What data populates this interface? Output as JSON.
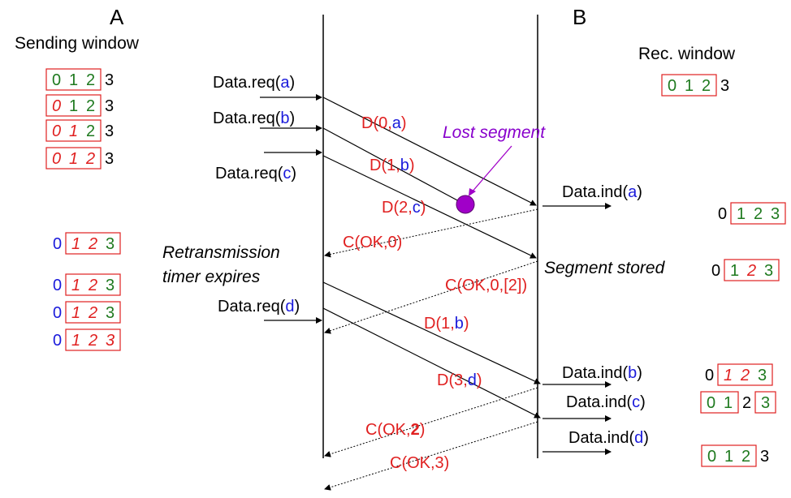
{
  "labels": {
    "a_title": "A",
    "b_title": "B",
    "sending_window": "Sending window",
    "rec_window": "Rec. window",
    "lost_segment": "Lost segment",
    "retrans_line1": "Retransmission",
    "retrans_line2": "timer expires",
    "segment_stored": "Segment stored"
  },
  "colors": {
    "red": "#e02020",
    "blue": "#1a1adb",
    "green": "#1f7a1f",
    "purple": "#8800cc",
    "black": "#000000"
  },
  "texts": [
    {
      "key": "data_req_a",
      "parts": [
        [
          "Data.req(",
          "black"
        ],
        [
          "a",
          "blue"
        ],
        [
          ")",
          "black"
        ]
      ]
    },
    {
      "key": "data_req_b",
      "parts": [
        [
          "Data.req(",
          "black"
        ],
        [
          "b",
          "blue"
        ],
        [
          ")",
          "black"
        ]
      ]
    },
    {
      "key": "data_req_c",
      "parts": [
        [
          "Data.req(",
          "black"
        ],
        [
          "c",
          "blue"
        ],
        [
          ")",
          "black"
        ]
      ]
    },
    {
      "key": "data_req_d",
      "parts": [
        [
          "Data.req(",
          "black"
        ],
        [
          "d",
          "blue"
        ],
        [
          ")",
          "black"
        ]
      ]
    },
    {
      "key": "data_ind_a",
      "parts": [
        [
          "Data.ind(",
          "black"
        ],
        [
          "a",
          "blue"
        ],
        [
          ")",
          "black"
        ]
      ]
    },
    {
      "key": "data_ind_b",
      "parts": [
        [
          "Data.ind(",
          "black"
        ],
        [
          "b",
          "blue"
        ],
        [
          ")",
          "black"
        ]
      ]
    },
    {
      "key": "data_ind_c",
      "parts": [
        [
          "Data.ind(",
          "black"
        ],
        [
          "c",
          "blue"
        ],
        [
          ")",
          "black"
        ]
      ]
    },
    {
      "key": "data_ind_d",
      "parts": [
        [
          "Data.ind(",
          "black"
        ],
        [
          "d",
          "blue"
        ],
        [
          ")",
          "black"
        ]
      ]
    },
    {
      "key": "seg_d0a",
      "parts": [
        [
          "D(0,",
          "red"
        ],
        [
          "a",
          "blue"
        ],
        [
          ")",
          "red"
        ]
      ]
    },
    {
      "key": "seg_d1b_first",
      "parts": [
        [
          "D(1,",
          "red"
        ],
        [
          "b",
          "blue"
        ],
        [
          ")",
          "red"
        ]
      ]
    },
    {
      "key": "seg_d2c",
      "parts": [
        [
          "D(2,",
          "red"
        ],
        [
          "c",
          "blue"
        ],
        [
          ")",
          "red"
        ]
      ]
    },
    {
      "key": "ack_ok0",
      "parts": [
        [
          "C(OK,0)",
          "red"
        ]
      ]
    },
    {
      "key": "ack_ok0_2",
      "parts": [
        [
          "C(OK,0,[2])",
          "red"
        ]
      ]
    },
    {
      "key": "seg_d1b_retrans",
      "parts": [
        [
          "D(1,",
          "red"
        ],
        [
          "b",
          "blue"
        ],
        [
          ")",
          "red"
        ]
      ]
    },
    {
      "key": "seg_d3d",
      "parts": [
        [
          "D(3,",
          "red"
        ],
        [
          "d",
          "blue"
        ],
        [
          ")",
          "red"
        ]
      ]
    },
    {
      "key": "ack_ok2",
      "parts": [
        [
          "C(OK,",
          "red"
        ],
        [
          "2",
          "red",
          "bold"
        ],
        [
          ")",
          "red"
        ]
      ]
    },
    {
      "key": "ack_ok3",
      "parts": [
        [
          "C(OK,3)",
          "red"
        ]
      ]
    }
  ],
  "windows": [
    {
      "key": "send_w1",
      "pre": "",
      "boxed": [
        [
          "0",
          "green",
          "n"
        ],
        [
          "1",
          "green",
          "n"
        ],
        [
          "2",
          "green",
          "n"
        ]
      ],
      "post": [
        [
          "3",
          "black",
          "n"
        ]
      ]
    },
    {
      "key": "send_w2",
      "pre": "",
      "boxed": [
        [
          "0",
          "red",
          "i"
        ],
        [
          "1",
          "green",
          "n"
        ],
        [
          "2",
          "green",
          "n"
        ]
      ],
      "post": [
        [
          "3",
          "black",
          "n"
        ]
      ]
    },
    {
      "key": "send_w3",
      "pre": "",
      "boxed": [
        [
          "0",
          "red",
          "i"
        ],
        [
          "1",
          "red",
          "i"
        ],
        [
          "2",
          "green",
          "n"
        ]
      ],
      "post": [
        [
          "3",
          "black",
          "n"
        ]
      ]
    },
    {
      "key": "send_w4",
      "pre": "",
      "boxed": [
        [
          "0",
          "red",
          "i"
        ],
        [
          "1",
          "red",
          "i"
        ],
        [
          "2",
          "red",
          "i"
        ]
      ],
      "post": [
        [
          "3",
          "black",
          "n"
        ]
      ]
    },
    {
      "key": "send_w5",
      "pre": "0",
      "preColor": "blue",
      "boxed": [
        [
          "1",
          "red",
          "i"
        ],
        [
          "2",
          "red",
          "i"
        ],
        [
          "3",
          "green",
          "n"
        ]
      ],
      "post": []
    },
    {
      "key": "send_w6",
      "pre": "0",
      "preColor": "blue",
      "boxed": [
        [
          "1",
          "red",
          "i"
        ],
        [
          "2",
          "red",
          "i"
        ],
        [
          "3",
          "green",
          "n"
        ]
      ],
      "post": []
    },
    {
      "key": "send_w7",
      "pre": "0",
      "preColor": "blue",
      "boxed": [
        [
          "1",
          "red",
          "i"
        ],
        [
          "2",
          "red",
          "i"
        ],
        [
          "3",
          "green",
          "n"
        ]
      ],
      "post": []
    },
    {
      "key": "send_w8",
      "pre": "0",
      "preColor": "blue",
      "boxed": [
        [
          "1",
          "red",
          "i"
        ],
        [
          "2",
          "red",
          "i"
        ],
        [
          "3",
          "red",
          "i"
        ]
      ],
      "post": []
    },
    {
      "key": "rec_w1",
      "pre": "",
      "boxed": [
        [
          "0",
          "green",
          "n"
        ],
        [
          "1",
          "green",
          "n"
        ],
        [
          "2",
          "green",
          "n"
        ]
      ],
      "post": [
        [
          "3",
          "black",
          "n"
        ]
      ]
    },
    {
      "key": "rec_w2",
      "pre": "0",
      "preColor": "black",
      "boxed": [
        [
          "1",
          "green",
          "n"
        ],
        [
          "2",
          "green",
          "n"
        ],
        [
          "3",
          "green",
          "n"
        ]
      ],
      "post": []
    },
    {
      "key": "rec_w3",
      "pre": "0",
      "preColor": "black",
      "boxed": [
        [
          "1",
          "green",
          "n"
        ],
        [
          "2",
          "red",
          "i"
        ],
        [
          "3",
          "green",
          "n"
        ]
      ],
      "post": []
    },
    {
      "key": "rec_w4",
      "pre": "0",
      "preColor": "black",
      "boxed": [
        [
          "1",
          "red",
          "i"
        ],
        [
          "2",
          "red",
          "i"
        ],
        [
          "3",
          "green",
          "n"
        ]
      ],
      "post": []
    },
    {
      "key": "rec_w5",
      "special": "split",
      "boxed": [
        [
          "0",
          "green",
          "n"
        ],
        [
          "1",
          "green",
          "n"
        ]
      ],
      "mid": [
        [
          "2",
          "black",
          "n"
        ]
      ],
      "boxed2": [
        [
          "3",
          "green",
          "n"
        ]
      ]
    },
    {
      "key": "rec_w6",
      "pre": "",
      "boxed": [
        [
          "0",
          "green",
          "n"
        ],
        [
          "1",
          "green",
          "n"
        ],
        [
          "2",
          "green",
          "n"
        ]
      ],
      "post": [
        [
          "3",
          "black",
          "n"
        ]
      ]
    }
  ]
}
